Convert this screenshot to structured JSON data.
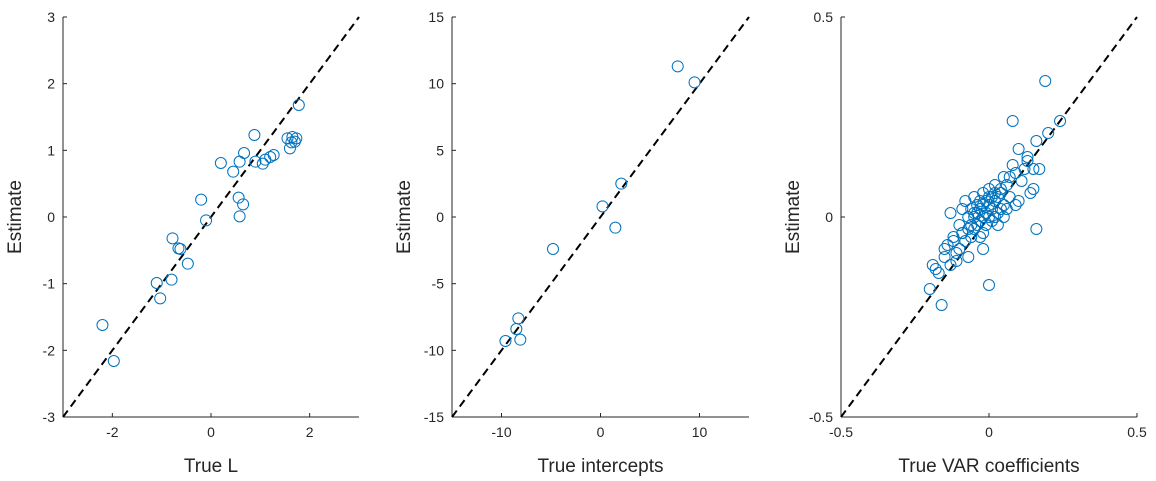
{
  "colors": {
    "marker": "#0072BD",
    "axis": "#262626",
    "reference_line": "#000000",
    "background": "#ffffff"
  },
  "chart_data": [
    {
      "type": "scatter",
      "title": "",
      "xlabel": "True L",
      "ylabel": "Estimate",
      "xlim": [
        -3,
        3
      ],
      "ylim": [
        -3,
        3
      ],
      "xticks": [
        "-2",
        "0",
        "2"
      ],
      "yticks": [
        "-3",
        "-2",
        "-1",
        "0",
        "1",
        "2",
        "3"
      ],
      "xtick_values": [
        -2,
        0,
        2
      ],
      "ytick_values": [
        -3,
        -2,
        -1,
        0,
        1,
        2,
        3
      ],
      "reference_line": "y = x",
      "grid": false,
      "x": [
        -2.2,
        -1.97,
        -1.1,
        -1.03,
        -0.8,
        -0.78,
        -0.66,
        -0.62,
        -0.47,
        -0.2,
        -0.1,
        0.2,
        0.45,
        0.56,
        0.58,
        0.58,
        0.65,
        0.67,
        0.88,
        0.9,
        1.05,
        1.1,
        1.2,
        1.27,
        1.55,
        1.6,
        1.63,
        1.65,
        1.7,
        1.73,
        1.78
      ],
      "y": [
        -1.62,
        -2.16,
        -0.99,
        -1.22,
        -0.94,
        -0.32,
        -0.47,
        -0.48,
        -0.7,
        0.26,
        -0.05,
        0.81,
        0.68,
        0.29,
        0.01,
        0.83,
        0.19,
        0.96,
        1.23,
        0.83,
        0.8,
        0.86,
        0.9,
        0.93,
        1.18,
        1.03,
        1.12,
        1.2,
        1.13,
        1.18,
        1.68
      ]
    },
    {
      "type": "scatter",
      "title": "",
      "xlabel": "True intercepts",
      "ylabel": "Estimate",
      "xlim": [
        -15,
        15
      ],
      "ylim": [
        -15,
        15
      ],
      "xticks": [
        "-10",
        "0",
        "10"
      ],
      "yticks": [
        "-15",
        "-10",
        "-5",
        "0",
        "5",
        "10",
        "15"
      ],
      "xtick_values": [
        -10,
        0,
        10
      ],
      "ytick_values": [
        -15,
        -10,
        -5,
        0,
        5,
        10,
        15
      ],
      "reference_line": "y = x",
      "grid": false,
      "x": [
        -9.6,
        -8.5,
        -8.3,
        -8.1,
        -4.8,
        0.2,
        1.5,
        2.1,
        7.8,
        9.5
      ],
      "y": [
        -9.3,
        -8.4,
        -7.6,
        -9.2,
        -2.4,
        0.8,
        -0.8,
        2.5,
        11.3,
        10.1
      ]
    },
    {
      "type": "scatter",
      "title": "",
      "xlabel": "True VAR coefficients",
      "ylabel": "Estimate",
      "xlim": [
        -0.5,
        0.5
      ],
      "ylim": [
        -0.5,
        0.5
      ],
      "xticks": [
        "-0.5",
        "0",
        "0.5"
      ],
      "yticks": [
        "-0.5",
        "0",
        "0.5"
      ],
      "xtick_values": [
        -0.5,
        0,
        0.5
      ],
      "ytick_values": [
        -0.5,
        0,
        0.5
      ],
      "reference_line": "y = x",
      "grid": false,
      "x": [
        -0.2,
        -0.19,
        -0.17,
        -0.16,
        -0.15,
        -0.14,
        -0.13,
        -0.13,
        -0.12,
        -0.11,
        -0.1,
        -0.1,
        -0.09,
        -0.09,
        -0.08,
        -0.08,
        -0.07,
        -0.07,
        -0.06,
        -0.06,
        -0.05,
        -0.05,
        -0.05,
        -0.04,
        -0.04,
        -0.04,
        -0.03,
        -0.03,
        -0.03,
        -0.02,
        -0.02,
        -0.02,
        -0.02,
        -0.01,
        -0.01,
        -0.01,
        0.0,
        0.0,
        0.0,
        0.0,
        0.01,
        0.01,
        0.01,
        0.02,
        0.02,
        0.02,
        0.03,
        0.03,
        0.03,
        0.04,
        0.04,
        0.05,
        0.05,
        0.06,
        0.06,
        0.07,
        0.08,
        0.09,
        0.1,
        0.11,
        0.12,
        0.13,
        0.14,
        0.15,
        0.16,
        0.17,
        0.19,
        0.2,
        0.24,
        -0.02,
        0.08,
        -0.15,
        -0.12,
        -0.09,
        -0.06,
        -0.05,
        -0.03,
        0.0,
        0.02,
        0.05,
        0.07,
        0.1,
        0.13,
        0.16,
        -0.18,
        -0.11,
        0.04,
        0.09,
        -0.07,
        0.15
      ],
      "y": [
        -0.18,
        -0.12,
        -0.14,
        -0.22,
        -0.1,
        -0.07,
        -0.12,
        0.01,
        -0.05,
        -0.09,
        -0.08,
        -0.02,
        -0.04,
        0.02,
        -0.06,
        0.04,
        -0.03,
        -0.1,
        0.02,
        -0.05,
        0.0,
        -0.03,
        0.05,
        -0.02,
        0.03,
        0.01,
        -0.01,
        0.04,
        -0.05,
        0.0,
        0.03,
        -0.04,
        0.06,
        0.01,
        -0.02,
        0.04,
        0.0,
        0.03,
        -0.17,
        0.07,
        0.02,
        0.05,
        -0.01,
        0.0,
        0.04,
        0.08,
        0.01,
        0.05,
        -0.02,
        0.02,
        0.06,
        0.03,
        0.1,
        0.02,
        0.08,
        0.05,
        0.24,
        0.11,
        0.17,
        0.09,
        0.12,
        0.15,
        0.06,
        0.07,
        0.19,
        0.12,
        0.34,
        0.21,
        0.24,
        -0.08,
        0.13,
        -0.08,
        -0.06,
        -0.04,
        -0.02,
        0.01,
        0.02,
        0.05,
        0.06,
        0.0,
        0.1,
        0.04,
        0.14,
        -0.03,
        -0.13,
        -0.11,
        0.07,
        0.03,
        0.0,
        0.12
      ]
    }
  ]
}
